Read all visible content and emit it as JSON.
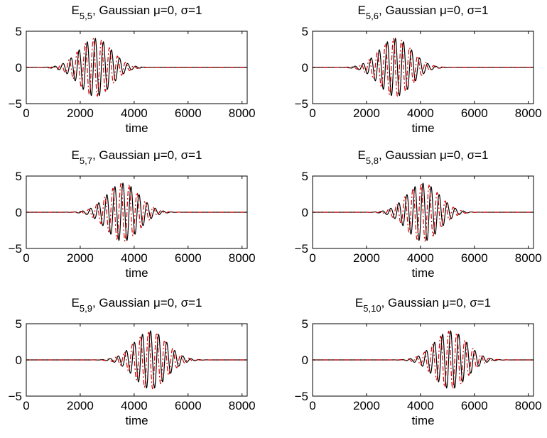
{
  "colors": {
    "real_series": "#000000",
    "imag_series": "#d40000",
    "axes": "#000000",
    "background": "#ffffff"
  },
  "chart_data": [
    {
      "type": "line",
      "title_prefix": "E",
      "title_subscript": "5,5",
      "title_suffix": ",  Gaussian μ=0, σ=1",
      "xlabel": "time",
      "ylabel": "",
      "xlim": [
        0,
        8192
      ],
      "ylim": [
        -5,
        5
      ],
      "xticks": [
        0,
        2000,
        4000,
        6000,
        8000
      ],
      "yticks": [
        5,
        0,
        -5
      ],
      "grid": false,
      "series": [
        {
          "style": "solid",
          "color": "#000000",
          "peak_time": 2560,
          "amplitude": 4.0,
          "period": 300,
          "phase": "cosine"
        },
        {
          "style": "dash-dot",
          "color": "#d40000",
          "peak_time": 2560,
          "amplitude": 4.0,
          "period": 300,
          "phase": "sine"
        }
      ]
    },
    {
      "type": "line",
      "title_prefix": "E",
      "title_subscript": "5,6",
      "title_suffix": ",  Gaussian μ=0, σ=1",
      "xlabel": "time",
      "ylabel": "",
      "xlim": [
        0,
        8192
      ],
      "ylim": [
        -5,
        5
      ],
      "xticks": [
        0,
        2000,
        4000,
        6000,
        8000
      ],
      "yticks": [
        5,
        0,
        -5
      ],
      "grid": false,
      "series": [
        {
          "style": "solid",
          "color": "#000000",
          "peak_time": 3072,
          "amplitude": 4.0,
          "period": 300,
          "phase": "cosine"
        },
        {
          "style": "dash-dot",
          "color": "#d40000",
          "peak_time": 3072,
          "amplitude": 4.0,
          "period": 300,
          "phase": "sine"
        }
      ]
    },
    {
      "type": "line",
      "title_prefix": "E",
      "title_subscript": "5,7",
      "title_suffix": ",  Gaussian μ=0, σ=1",
      "xlabel": "time",
      "ylabel": "",
      "xlim": [
        0,
        8192
      ],
      "ylim": [
        -5,
        5
      ],
      "xticks": [
        0,
        2000,
        4000,
        6000,
        8000
      ],
      "yticks": [
        5,
        0,
        -5
      ],
      "grid": false,
      "series": [
        {
          "style": "solid",
          "color": "#000000",
          "peak_time": 3584,
          "amplitude": 4.0,
          "period": 300,
          "phase": "cosine"
        },
        {
          "style": "dash-dot",
          "color": "#d40000",
          "peak_time": 3584,
          "amplitude": 4.0,
          "period": 300,
          "phase": "sine"
        }
      ]
    },
    {
      "type": "line",
      "title_prefix": "E",
      "title_subscript": "5,8",
      "title_suffix": ",  Gaussian μ=0, σ=1",
      "xlabel": "time",
      "ylabel": "",
      "xlim": [
        0,
        8192
      ],
      "ylim": [
        -5,
        5
      ],
      "xticks": [
        0,
        2000,
        4000,
        6000,
        8000
      ],
      "yticks": [
        5,
        0,
        -5
      ],
      "grid": false,
      "series": [
        {
          "style": "solid",
          "color": "#000000",
          "peak_time": 4096,
          "amplitude": 4.0,
          "period": 300,
          "phase": "cosine"
        },
        {
          "style": "dash-dot",
          "color": "#d40000",
          "peak_time": 4096,
          "amplitude": 4.0,
          "period": 300,
          "phase": "sine"
        }
      ]
    },
    {
      "type": "line",
      "title_prefix": "E",
      "title_subscript": "5,9",
      "title_suffix": ",  Gaussian μ=0, σ=1",
      "xlabel": "time",
      "ylabel": "",
      "xlim": [
        0,
        8192
      ],
      "ylim": [
        -5,
        5
      ],
      "xticks": [
        0,
        2000,
        4000,
        6000,
        8000
      ],
      "yticks": [
        5,
        0,
        -5
      ],
      "grid": false,
      "series": [
        {
          "style": "solid",
          "color": "#000000",
          "peak_time": 4608,
          "amplitude": 4.0,
          "period": 300,
          "phase": "cosine"
        },
        {
          "style": "dash-dot",
          "color": "#d40000",
          "peak_time": 4608,
          "amplitude": 4.0,
          "period": 300,
          "phase": "sine"
        }
      ]
    },
    {
      "type": "line",
      "title_prefix": "E",
      "title_subscript": "5,10",
      "title_suffix": ",  Gaussian μ=0, σ=1",
      "xlabel": "time",
      "ylabel": "",
      "xlim": [
        0,
        8192
      ],
      "ylim": [
        -5,
        5
      ],
      "xticks": [
        0,
        2000,
        4000,
        6000,
        8000
      ],
      "yticks": [
        5,
        0,
        -5
      ],
      "grid": false,
      "series": [
        {
          "style": "solid",
          "color": "#000000",
          "peak_time": 5120,
          "amplitude": 4.0,
          "period": 300,
          "phase": "cosine"
        },
        {
          "style": "dash-dot",
          "color": "#d40000",
          "peak_time": 5120,
          "amplitude": 4.0,
          "period": 300,
          "phase": "sine"
        }
      ]
    }
  ]
}
